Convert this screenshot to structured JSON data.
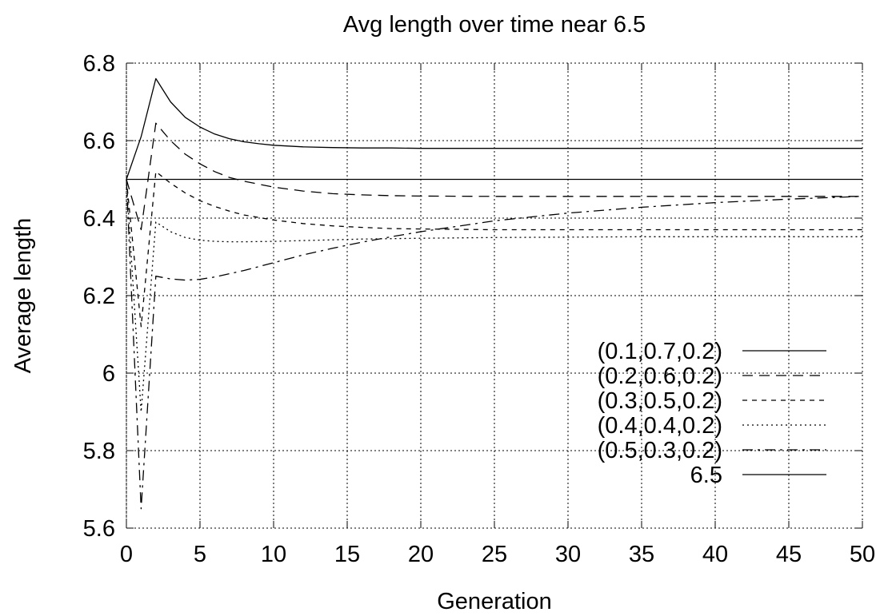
{
  "chart_data": {
    "type": "line",
    "title": "Avg length over time near 6.5",
    "xlabel": "Generation",
    "ylabel": "Average length",
    "xlim": [
      0,
      50
    ],
    "ylim": [
      5.6,
      6.8
    ],
    "xticks": [
      0,
      5,
      10,
      15,
      20,
      25,
      30,
      35,
      40,
      45,
      50
    ],
    "yticks": [
      5.6,
      5.8,
      6,
      6.2,
      6.4,
      6.6,
      6.8
    ],
    "xtick_labels": [
      "0",
      "5",
      "10",
      "15",
      "20",
      "25",
      "30",
      "35",
      "40",
      "45",
      "50"
    ],
    "ytick_labels": [
      "5.6",
      "5.8",
      "6",
      "6.2",
      "6.4",
      "6.6",
      "6.8"
    ],
    "grid": true,
    "legend_position": "bottom-right",
    "series": [
      {
        "name": "(0.1,0.7,0.2)",
        "dash": "",
        "x": [
          0,
          1,
          2,
          3,
          4,
          5,
          6,
          7,
          8,
          9,
          10,
          12,
          14,
          16,
          18,
          20,
          25,
          30,
          35,
          40,
          45,
          50
        ],
        "y": [
          6.5,
          6.61,
          6.76,
          6.7,
          6.66,
          6.635,
          6.617,
          6.605,
          6.597,
          6.592,
          6.588,
          6.584,
          6.582,
          6.581,
          6.581,
          6.58,
          6.58,
          6.58,
          6.58,
          6.58,
          6.58,
          6.58
        ]
      },
      {
        "name": "(0.2,0.6,0.2)",
        "dash": "13,8",
        "x": [
          0,
          1,
          2,
          3,
          4,
          5,
          6,
          7,
          8,
          10,
          12,
          14,
          16,
          18,
          20,
          25,
          30,
          35,
          40,
          45,
          50
        ],
        "y": [
          6.5,
          6.37,
          6.645,
          6.6,
          6.565,
          6.54,
          6.52,
          6.505,
          6.495,
          6.48,
          6.47,
          6.463,
          6.46,
          6.458,
          6.457,
          6.456,
          6.456,
          6.456,
          6.456,
          6.456,
          6.456
        ]
      },
      {
        "name": "(0.3,0.5,0.2)",
        "dash": "6,6",
        "x": [
          0,
          1,
          2,
          3,
          4,
          5,
          6,
          7,
          8,
          10,
          12,
          14,
          16,
          18,
          20,
          25,
          30,
          35,
          40,
          45,
          50
        ],
        "y": [
          6.5,
          6.12,
          6.52,
          6.49,
          6.465,
          6.445,
          6.43,
          6.418,
          6.408,
          6.395,
          6.386,
          6.38,
          6.376,
          6.373,
          6.372,
          6.37,
          6.37,
          6.37,
          6.37,
          6.37,
          6.37
        ]
      },
      {
        "name": "(0.4,0.4,0.2)",
        "dash": "2,4",
        "x": [
          0,
          1,
          2,
          3,
          4,
          5,
          6,
          7,
          8,
          10,
          12,
          14,
          16,
          18,
          20,
          25,
          30,
          35,
          40,
          45,
          50
        ],
        "y": [
          6.5,
          5.9,
          6.39,
          6.365,
          6.35,
          6.343,
          6.34,
          6.339,
          6.339,
          6.34,
          6.342,
          6.344,
          6.346,
          6.347,
          6.348,
          6.35,
          6.351,
          6.352,
          6.352,
          6.352,
          6.352
        ]
      },
      {
        "name": "(0.5,0.3,0.2)",
        "dash": "13,6,3,6",
        "x": [
          0,
          1,
          2,
          3,
          4,
          5,
          6,
          8,
          10,
          12,
          14,
          16,
          18,
          20,
          25,
          30,
          35,
          40,
          45,
          50
        ],
        "y": [
          6.5,
          5.65,
          6.25,
          6.243,
          6.24,
          6.242,
          6.248,
          6.265,
          6.285,
          6.305,
          6.322,
          6.338,
          6.352,
          6.365,
          6.393,
          6.413,
          6.428,
          6.44,
          6.449,
          6.456
        ]
      },
      {
        "name": "6.5",
        "dash": "",
        "x": [
          0,
          50
        ],
        "y": [
          6.5,
          6.5
        ]
      }
    ]
  }
}
